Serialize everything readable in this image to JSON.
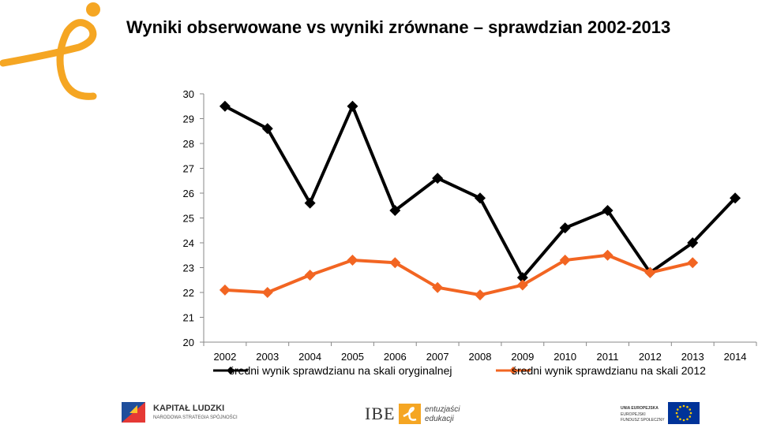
{
  "title": "Wyniki obserwowane vs wyniki zrównane – sprawdzian 2002-2013",
  "colors": {
    "observed": "#000000",
    "equated": "#f26522",
    "brand": "#f5a623",
    "eu": "#003399"
  },
  "chart_data": {
    "type": "line",
    "x": [
      "2002",
      "2003",
      "2004",
      "2005",
      "2006",
      "2007",
      "2008",
      "2009",
      "2010",
      "2011",
      "2012",
      "2013",
      "2014"
    ],
    "ylim": [
      20,
      30
    ],
    "yticks": [
      "20",
      "21",
      "22",
      "23",
      "24",
      "25",
      "26",
      "27",
      "28",
      "29",
      "30"
    ],
    "xlabel": "",
    "ylabel": "",
    "grid": false,
    "legend_position": "bottom",
    "series": [
      {
        "name": "średni wynik sprawdzianu na skali oryginalnej",
        "values": [
          29.5,
          28.6,
          25.6,
          29.5,
          25.3,
          26.6,
          25.8,
          22.6,
          24.6,
          25.3,
          22.8,
          24.0,
          25.8
        ]
      },
      {
        "name": "średni wynik sprawdzianu na skali 2012",
        "values": [
          22.1,
          22.0,
          22.7,
          23.3,
          23.2,
          22.2,
          21.9,
          22.3,
          23.3,
          23.5,
          22.8,
          23.2,
          null
        ]
      }
    ]
  },
  "footer": {
    "kapital_title": "KAPITAŁ LUDZKI",
    "kapital_sub": "NARODOWA STRATEGIA SPÓJNOŚCI",
    "ibe": "IBE",
    "ibe_sub1": "entuzjaści",
    "ibe_sub2": "edukacji",
    "eu1": "UNIA EUROPEJSKA",
    "eu2": "EUROPEJSKI",
    "eu3": "FUNDUSZ SPOŁECZNY"
  }
}
